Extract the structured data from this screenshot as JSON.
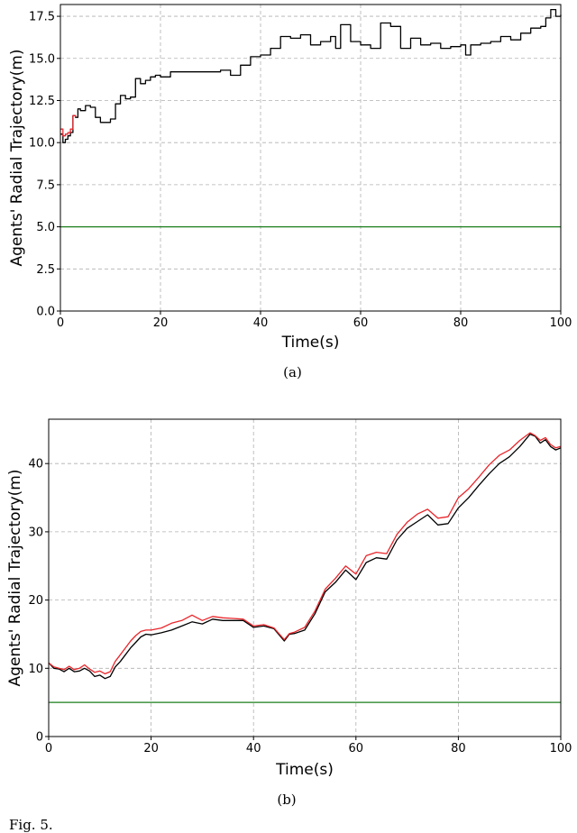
{
  "chart_data": [
    {
      "type": "line",
      "caption": "(a)",
      "xlabel": "Time(s)",
      "ylabel": "Agents' Radial Trajectory(m)",
      "xlim": [
        0,
        100
      ],
      "ylim": [
        0,
        18.2
      ],
      "xticks": [
        0,
        20,
        40,
        60,
        80,
        100
      ],
      "xtick_labels": [
        "0",
        "20",
        "40",
        "60",
        "80",
        "100"
      ],
      "yticks": [
        0,
        2.5,
        5,
        7.5,
        10,
        12.5,
        15,
        17.5
      ],
      "ytick_labels": [
        "0.0",
        "2.5",
        "5.0",
        "7.5",
        "10.0",
        "12.5",
        "15.0",
        "17.5"
      ],
      "grid": true,
      "colors": {
        "red": "#e8262b",
        "black": "#000000",
        "green": "#1a7d1a"
      },
      "reference_line": {
        "y": 5.0,
        "color": "#1a7d1a"
      },
      "series": [
        {
          "color": "#000000",
          "step": true,
          "x": [
            0,
            0.5,
            1,
            1.5,
            2,
            2.5,
            3,
            3.5,
            4,
            5,
            6,
            7,
            8,
            9,
            10,
            11,
            12,
            13,
            14,
            15,
            16,
            17,
            18,
            19,
            20,
            22,
            24,
            26,
            28,
            30,
            32,
            34,
            36,
            38,
            40,
            42,
            44,
            46,
            48,
            50,
            52,
            54,
            55,
            56,
            58,
            60,
            62,
            64,
            66,
            68,
            70,
            72,
            74,
            76,
            78,
            80,
            81,
            82,
            84,
            86,
            88,
            90,
            92,
            94,
            96,
            97,
            98,
            99,
            100
          ],
          "y": [
            10.5,
            10.0,
            10.2,
            10.4,
            10.6,
            11.6,
            11.5,
            12.0,
            11.9,
            12.2,
            12.1,
            11.5,
            11.2,
            11.2,
            11.4,
            12.3,
            12.8,
            12.6,
            12.7,
            13.8,
            13.5,
            13.7,
            13.9,
            14.0,
            13.9,
            14.2,
            14.2,
            14.2,
            14.2,
            14.2,
            14.3,
            14.0,
            14.6,
            15.1,
            15.2,
            15.6,
            16.3,
            16.2,
            16.4,
            15.8,
            16.0,
            16.3,
            15.6,
            17.0,
            16.0,
            15.8,
            15.6,
            17.1,
            16.9,
            15.6,
            16.2,
            15.8,
            15.9,
            15.6,
            15.7,
            15.8,
            15.2,
            15.8,
            15.9,
            16.0,
            16.3,
            16.1,
            16.5,
            16.8,
            16.9,
            17.4,
            17.9,
            17.5,
            17.6
          ]
        },
        {
          "color": "#e8262b",
          "step": true,
          "x": [
            0,
            0.5,
            1,
            1.5,
            2,
            2.5,
            3
          ],
          "y": [
            10.8,
            10.4,
            10.5,
            10.6,
            10.8,
            11.6,
            11.5
          ]
        }
      ]
    },
    {
      "type": "line",
      "caption": "(b)",
      "xlabel": "Time(s)",
      "ylabel": "Agents' Radial Trajectory(m)",
      "xlim": [
        0,
        100
      ],
      "ylim": [
        0,
        46.5
      ],
      "xticks": [
        0,
        20,
        40,
        60,
        80,
        100
      ],
      "xtick_labels": [
        "0",
        "20",
        "40",
        "60",
        "80",
        "100"
      ],
      "yticks": [
        0,
        10,
        20,
        30,
        40
      ],
      "ytick_labels": [
        "0",
        "10",
        "20",
        "30",
        "40"
      ],
      "grid": true,
      "colors": {
        "red": "#e8262b",
        "black": "#000000",
        "green": "#1a7d1a"
      },
      "reference_line": {
        "y": 5.0,
        "color": "#1a7d1a"
      },
      "series": [
        {
          "color": "#000000",
          "x": [
            0,
            1,
            2,
            3,
            4,
            5,
            6,
            7,
            8,
            9,
            10,
            11,
            12,
            13,
            14,
            15,
            16,
            17,
            18,
            19,
            20,
            22,
            24,
            26,
            28,
            30,
            32,
            34,
            36,
            38,
            40,
            42,
            44,
            46,
            47,
            48,
            50,
            52,
            54,
            56,
            58,
            60,
            62,
            64,
            66,
            68,
            70,
            72,
            74,
            76,
            78,
            80,
            82,
            84,
            86,
            88,
            90,
            92,
            94,
            95,
            96,
            97,
            98,
            99,
            100
          ],
          "y": [
            10.8,
            10.0,
            9.9,
            9.5,
            10.0,
            9.5,
            9.6,
            10.0,
            9.6,
            8.8,
            9.0,
            8.5,
            8.8,
            10.2,
            11.0,
            12.0,
            13.0,
            13.8,
            14.6,
            15.0,
            14.9,
            15.2,
            15.6,
            16.2,
            16.8,
            16.5,
            17.2,
            17.0,
            17.0,
            17.0,
            16.0,
            16.2,
            15.8,
            14.0,
            15.0,
            15.1,
            15.6,
            18.0,
            21.2,
            22.6,
            24.4,
            23.0,
            25.5,
            26.2,
            26.0,
            28.8,
            30.5,
            31.5,
            32.5,
            31.0,
            31.2,
            33.5,
            35.0,
            36.8,
            38.5,
            40.0,
            41.0,
            42.5,
            44.3,
            44.0,
            43.0,
            43.5,
            42.5,
            42.0,
            42.3
          ]
        },
        {
          "color": "#e8262b",
          "x": [
            0,
            1,
            2,
            3,
            4,
            5,
            6,
            7,
            8,
            9,
            10,
            11,
            12,
            13,
            14,
            15,
            16,
            17,
            18,
            19,
            20,
            22,
            24,
            26,
            28,
            30,
            32,
            34,
            36,
            38,
            40,
            42,
            44,
            46,
            47,
            48,
            50,
            52,
            54,
            56,
            58,
            60,
            62,
            64,
            66,
            68,
            70,
            72,
            74,
            76,
            78,
            80,
            82,
            84,
            86,
            88,
            90,
            92,
            94,
            95,
            96,
            97,
            98,
            99,
            100
          ],
          "y": [
            10.8,
            10.2,
            10.0,
            9.8,
            10.3,
            9.8,
            10.0,
            10.5,
            9.9,
            9.4,
            9.6,
            9.2,
            9.5,
            11.0,
            12.0,
            13.0,
            14.0,
            14.8,
            15.4,
            15.6,
            15.6,
            15.9,
            16.6,
            17.0,
            17.8,
            17.0,
            17.6,
            17.4,
            17.3,
            17.2,
            16.2,
            16.4,
            15.9,
            14.2,
            15.1,
            15.3,
            16.0,
            18.4,
            21.6,
            23.2,
            25.0,
            23.8,
            26.5,
            27.0,
            26.8,
            29.6,
            31.4,
            32.6,
            33.3,
            32.0,
            32.2,
            35.0,
            36.3,
            38.0,
            39.8,
            41.2,
            42.0,
            43.4,
            44.5,
            44.1,
            43.4,
            43.8,
            42.8,
            42.3,
            42.5
          ]
        }
      ]
    }
  ]
}
